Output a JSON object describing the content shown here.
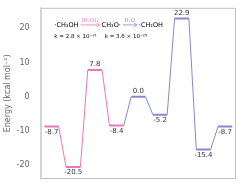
{
  "chart_data": {
    "type": "line",
    "ylabel": "Energy (kcal mol⁻¹)",
    "categories": [
      null,
      null,
      null,
      null,
      null,
      null,
      null,
      null,
      null
    ],
    "series": [
      {
        "color": "#e878bb",
        "values": [
          -8.7,
          -20.5,
          7.8,
          -8.4,
          null,
          null,
          null,
          null,
          null
        ],
        "value_labels": [
          "-8.7",
          "-20.5",
          "7.8",
          "-8.4",
          null,
          null,
          null,
          null,
          null
        ]
      },
      {
        "color": "#8888cc",
        "values": [
          null,
          null,
          null,
          null,
          0.0,
          -5.2,
          22.9,
          -15.4,
          -8.7
        ],
        "value_labels": [
          null,
          null,
          null,
          null,
          "0.0",
          "-5.2",
          "22.9",
          "-15.4",
          "-8.7"
        ]
      }
    ],
    "ylim": [
      -24,
      26
    ],
    "yticks": [
      -20,
      -10,
      0,
      10,
      20
    ],
    "grid": false,
    "tick_labels": "y",
    "data_labels": true,
    "marker": "line",
    "annotations": [
      [
        {
          "text": "·CH₃OH"
        },
        {
          "text": "(H₂O)₂",
          "color": "#e878bb"
        },
        {
          "text": "CH₃O·"
        },
        {
          "text": "H₂O",
          "color": "#8888cc"
        },
        {
          "text": "·CH₂OH"
        }
      ],
      [
        {
          "text": "k = 2.8 × 10⁻²¹"
        },
        {
          "text": "k = 3.6 × 10⁻²⁹"
        }
      ]
    ]
  }
}
